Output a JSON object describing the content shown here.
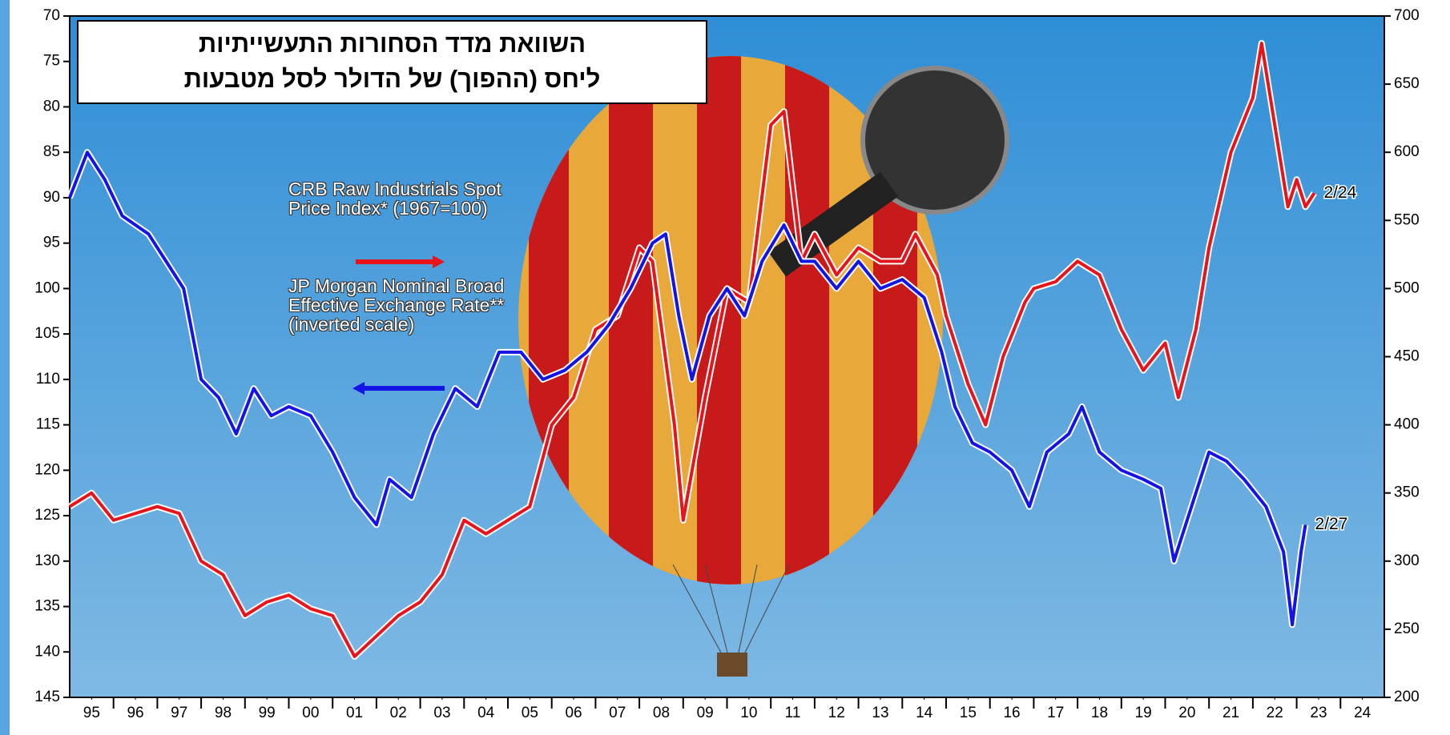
{
  "chart_data": {
    "type": "line",
    "title": [
      "השוואת מדד הסחורות התעשייתיות",
      "ליחס (ההפוך) של הדולר לסל מטבעות"
    ],
    "xlim": [
      1995,
      2025
    ],
    "xticks": [
      {
        "value": 1995.5,
        "label": "95"
      },
      {
        "value": 1996.5,
        "label": "96"
      },
      {
        "value": 1997.5,
        "label": "97"
      },
      {
        "value": 1998.5,
        "label": "98"
      },
      {
        "value": 1999.5,
        "label": "99"
      },
      {
        "value": 2000.5,
        "label": "00"
      },
      {
        "value": 2001.5,
        "label": "01"
      },
      {
        "value": 2002.5,
        "label": "02"
      },
      {
        "value": 2003.5,
        "label": "03"
      },
      {
        "value": 2004.5,
        "label": "04"
      },
      {
        "value": 2005.5,
        "label": "05"
      },
      {
        "value": 2006.5,
        "label": "06"
      },
      {
        "value": 2007.5,
        "label": "07"
      },
      {
        "value": 2008.5,
        "label": "08"
      },
      {
        "value": 2009.5,
        "label": "09"
      },
      {
        "value": 2010.5,
        "label": "10"
      },
      {
        "value": 2011.5,
        "label": "11"
      },
      {
        "value": 2012.5,
        "label": "12"
      },
      {
        "value": 2013.5,
        "label": "13"
      },
      {
        "value": 2014.5,
        "label": "14"
      },
      {
        "value": 2015.5,
        "label": "15"
      },
      {
        "value": 2016.5,
        "label": "16"
      },
      {
        "value": 2017.5,
        "label": "17"
      },
      {
        "value": 2018.5,
        "label": "18"
      },
      {
        "value": 2019.5,
        "label": "19"
      },
      {
        "value": 2020.5,
        "label": "20"
      },
      {
        "value": 2021.5,
        "label": "21"
      },
      {
        "value": 2022.5,
        "label": "22"
      },
      {
        "value": 2023.5,
        "label": "23"
      },
      {
        "value": 2024.5,
        "label": "24"
      }
    ],
    "ylim": [
      145,
      70
    ],
    "yticks": [
      70,
      75,
      80,
      85,
      90,
      95,
      100,
      105,
      110,
      115,
      120,
      125,
      130,
      135,
      140,
      145
    ],
    "y2lim": [
      200,
      700
    ],
    "y2ticks": [
      200,
      250,
      300,
      350,
      400,
      450,
      500,
      550,
      600,
      650,
      700
    ],
    "series": [
      {
        "name": "CRB Raw Industrials Spot Price Index* (1967=100)",
        "color": "#e8141c",
        "axis": "y2",
        "end_label": "2/24",
        "x": [
          1995.0,
          1995.5,
          1996.0,
          1996.5,
          1997.0,
          1997.5,
          1998.0,
          1998.5,
          1999.0,
          1999.5,
          2000.0,
          2000.5,
          2001.0,
          2001.5,
          2002.0,
          2002.5,
          2003.0,
          2003.5,
          2004.0,
          2004.5,
          2005.0,
          2005.5,
          2006.0,
          2006.5,
          2007.0,
          2007.5,
          2008.0,
          2008.3,
          2008.8,
          2009.0,
          2009.5,
          2010.0,
          2010.5,
          2011.0,
          2011.3,
          2011.7,
          2012.0,
          2012.5,
          2013.0,
          2013.5,
          2014.0,
          2014.3,
          2014.8,
          2015.0,
          2015.5,
          2015.9,
          2016.3,
          2016.8,
          2017.0,
          2017.5,
          2018.0,
          2018.5,
          2019.0,
          2019.5,
          2020.0,
          2020.3,
          2020.7,
          2021.0,
          2021.5,
          2022.0,
          2022.2,
          2022.5,
          2022.8,
          2023.0,
          2023.2,
          2023.4
        ],
        "values": [
          340,
          350,
          330,
          335,
          340,
          335,
          300,
          290,
          260,
          270,
          275,
          265,
          260,
          230,
          245,
          260,
          270,
          290,
          330,
          320,
          330,
          340,
          400,
          420,
          470,
          480,
          530,
          520,
          400,
          330,
          420,
          500,
          490,
          620,
          630,
          520,
          540,
          510,
          530,
          520,
          520,
          540,
          510,
          480,
          430,
          400,
          450,
          490,
          500,
          505,
          520,
          510,
          470,
          440,
          460,
          420,
          470,
          530,
          600,
          640,
          680,
          620,
          560,
          580,
          560,
          570
        ]
      },
      {
        "name": "JP Morgan Nominal Broad Effective Exchange Rate** (inverted scale)",
        "color": "#1414e6",
        "axis": "y",
        "end_label": "2/27",
        "x": [
          1995.0,
          1995.4,
          1995.8,
          1996.2,
          1996.8,
          1997.2,
          1997.6,
          1998.0,
          1998.4,
          1998.8,
          1999.2,
          1999.6,
          2000.0,
          2000.5,
          2001.0,
          2001.5,
          2002.0,
          2002.3,
          2002.8,
          2003.3,
          2003.8,
          2004.3,
          2004.8,
          2005.3,
          2005.8,
          2006.3,
          2006.8,
          2007.3,
          2007.8,
          2008.3,
          2008.6,
          2008.9,
          2009.2,
          2009.6,
          2010.0,
          2010.4,
          2010.8,
          2011.3,
          2011.7,
          2012.0,
          2012.5,
          2013.0,
          2013.5,
          2014.0,
          2014.5,
          2014.9,
          2015.2,
          2015.6,
          2016.0,
          2016.5,
          2016.9,
          2017.3,
          2017.8,
          2018.1,
          2018.5,
          2019.0,
          2019.5,
          2019.9,
          2020.2,
          2020.6,
          2021.0,
          2021.4,
          2021.8,
          2022.3,
          2022.7,
          2022.9,
          2023.1,
          2023.2
        ],
        "values": [
          90,
          85,
          88,
          92,
          94,
          97,
          100,
          110,
          112,
          116,
          111,
          114,
          113,
          114,
          118,
          123,
          126,
          121,
          123,
          116,
          111,
          113,
          107,
          107,
          110,
          109,
          107,
          104,
          100,
          95,
          94,
          103,
          110,
          103,
          100,
          103,
          97,
          93,
          97,
          97,
          100,
          97,
          100,
          99,
          101,
          107,
          113,
          117,
          118,
          120,
          124,
          118,
          116,
          113,
          118,
          120,
          121,
          122,
          130,
          124,
          118,
          119,
          121,
          124,
          129,
          137,
          129,
          126
        ]
      }
    ]
  }
}
